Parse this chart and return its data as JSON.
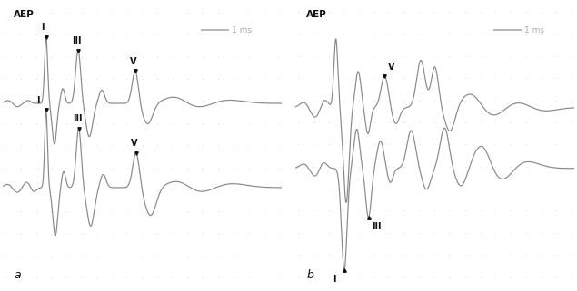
{
  "title_a": "AEP",
  "title_b": "AEP",
  "label_a": "a",
  "label_b": "b",
  "scale_text": "1 ms",
  "bg_color": "#efefef",
  "line_color": "#888888",
  "annotation_color": "#111111",
  "scale_color": "#aaaaaa",
  "dot_grid_color": "#cccccc",
  "border_color": "#555555"
}
